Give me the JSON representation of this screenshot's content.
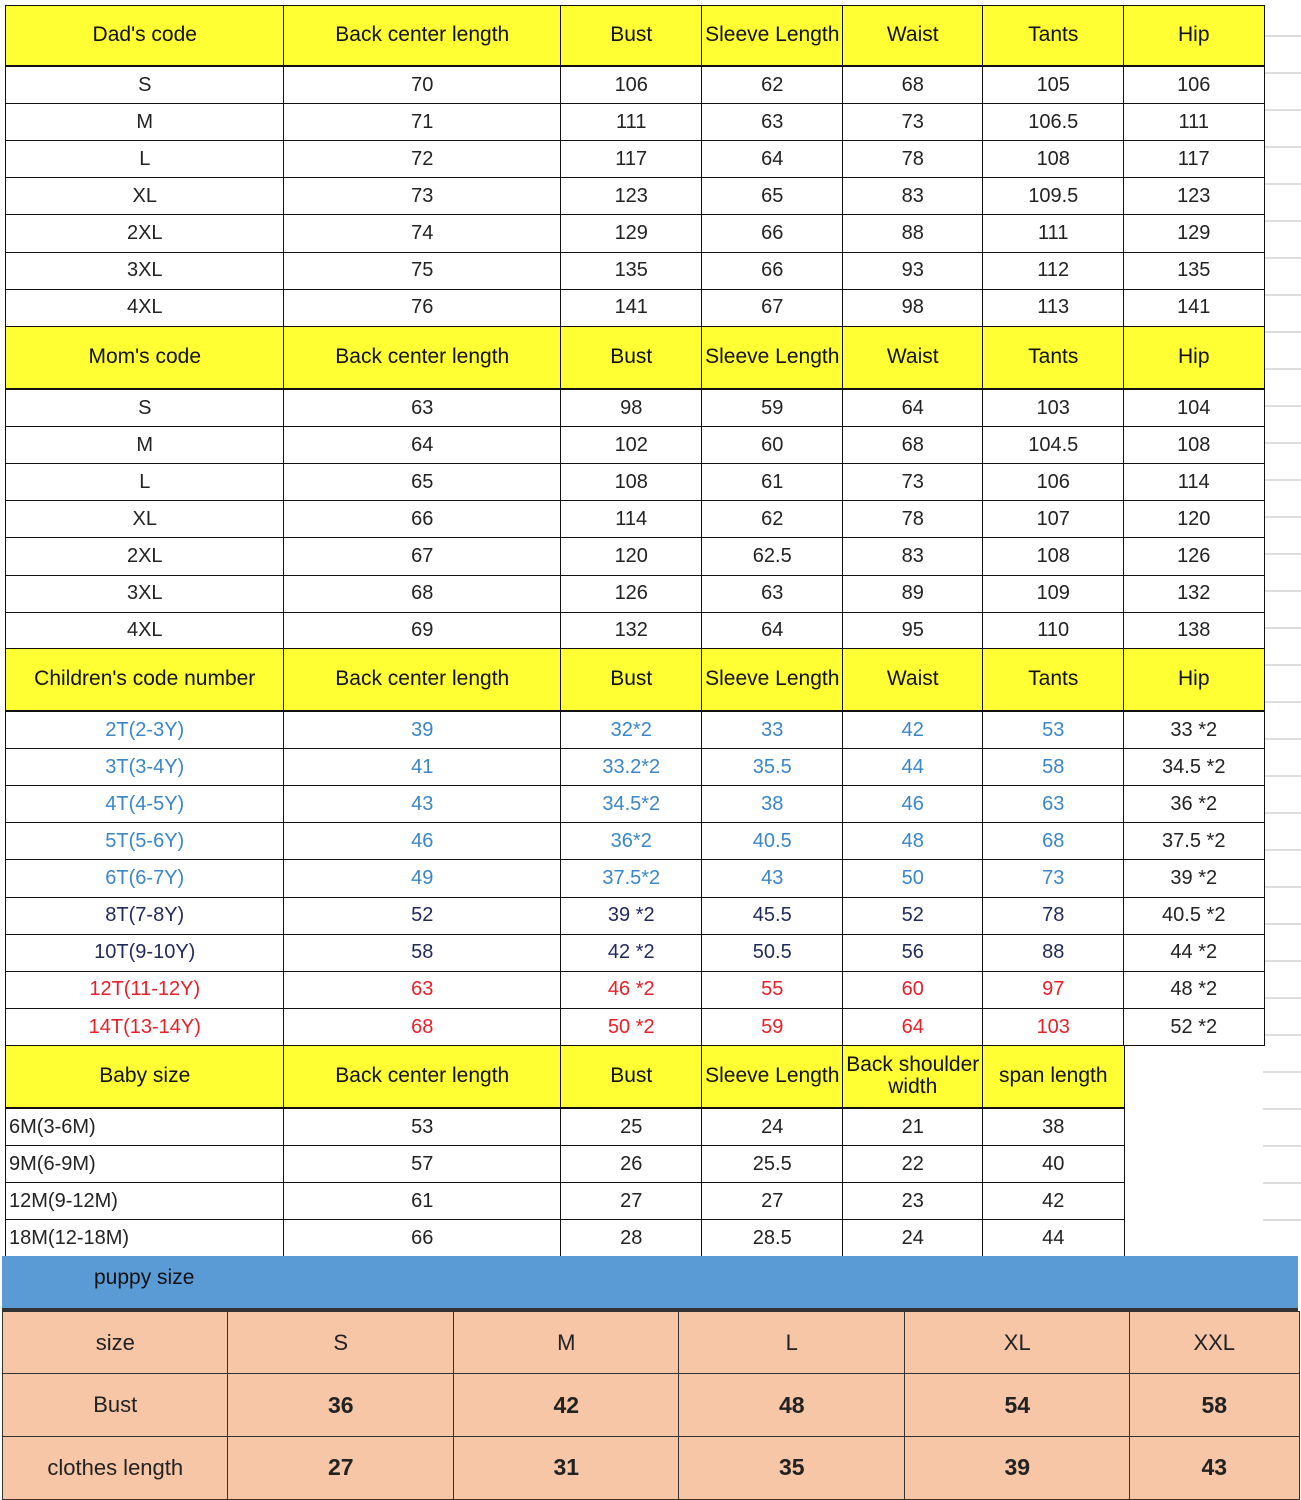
{
  "colors": {
    "header_bg": "#ffff33",
    "puppy_bar": "#5b9bd5",
    "puppy_cells": "#f7c6a6",
    "blue_text": "#3a86c8",
    "navy_text": "#1f2a5a",
    "red_text": "#e8202a",
    "default_text": "#222222"
  },
  "dad": {
    "headers": [
      "Dad's code",
      "Back center length",
      "Bust",
      "Sleeve Length",
      "Waist",
      "Tants",
      "Hip"
    ],
    "rows": [
      [
        "S",
        "70",
        "106",
        "62",
        "68",
        "105",
        "106"
      ],
      [
        "M",
        "71",
        "111",
        "63",
        "73",
        "106.5",
        "111"
      ],
      [
        "L",
        "72",
        "117",
        "64",
        "78",
        "108",
        "117"
      ],
      [
        "XL",
        "73",
        "123",
        "65",
        "83",
        "109.5",
        "123"
      ],
      [
        "2XL",
        "74",
        "129",
        "66",
        "88",
        "111",
        "129"
      ],
      [
        "3XL",
        "75",
        "135",
        "66",
        "93",
        "112",
        "135"
      ],
      [
        "4XL",
        "76",
        "141",
        "67",
        "98",
        "113",
        "141"
      ]
    ]
  },
  "mom": {
    "headers": [
      "Mom's code",
      "Back center length",
      "Bust",
      "Sleeve Length",
      "Waist",
      "Tants",
      "Hip"
    ],
    "rows": [
      [
        "S",
        "63",
        "98",
        "59",
        "64",
        "103",
        "104"
      ],
      [
        "M",
        "64",
        "102",
        "60",
        "68",
        "104.5",
        "108"
      ],
      [
        "L",
        "65",
        "108",
        "61",
        "73",
        "106",
        "114"
      ],
      [
        "XL",
        "66",
        "114",
        "62",
        "78",
        "107",
        "120"
      ],
      [
        "2XL",
        "67",
        "120",
        "62.5",
        "83",
        "108",
        "126"
      ],
      [
        "3XL",
        "68",
        "126",
        "63",
        "89",
        "109",
        "132"
      ],
      [
        "4XL",
        "69",
        "132",
        "64",
        "95",
        "110",
        "138"
      ]
    ]
  },
  "children": {
    "headers": [
      "Children's code number",
      "Back center length",
      "Bust",
      "Sleeve Length",
      "Waist",
      "Tants",
      "Hip"
    ],
    "rows": [
      [
        "2T(2-3Y)",
        "39",
        "32*2",
        "33",
        "42",
        "53",
        "33 *2"
      ],
      [
        "3T(3-4Y)",
        "41",
        "33.2*2",
        "35.5",
        "44",
        "58",
        "34.5 *2"
      ],
      [
        "4T(4-5Y)",
        "43",
        "34.5*2",
        "38",
        "46",
        "63",
        "36 *2"
      ],
      [
        "5T(5-6Y)",
        "46",
        "36*2",
        "40.5",
        "48",
        "68",
        "37.5 *2"
      ],
      [
        "6T(6-7Y)",
        "49",
        "37.5*2",
        "43",
        "50",
        "73",
        "39 *2"
      ],
      [
        "8T(7-8Y)",
        "52",
        "39 *2",
        "45.5",
        "52",
        "78",
        "40.5 *2"
      ],
      [
        "10T(9-10Y)",
        "58",
        "42 *2",
        "50.5",
        "56",
        "88",
        "44 *2"
      ],
      [
        "12T(11-12Y)",
        "63",
        "46 *2",
        "55",
        "60",
        "97",
        "48 *2"
      ],
      [
        "14T(13-14Y)",
        "68",
        "50 *2",
        "59",
        "64",
        "103",
        "52 *2"
      ]
    ],
    "row_colors": [
      "blue",
      "blue",
      "blue",
      "blue",
      "blue",
      "navy",
      "navy",
      "red",
      "red"
    ]
  },
  "baby": {
    "headers": [
      "Baby size",
      "Back center length",
      "Bust",
      "Sleeve Length",
      "Back shoulder width",
      "span length"
    ],
    "rows": [
      [
        "6M(3-6M)",
        "53",
        "25",
        "24",
        "21",
        "38"
      ],
      [
        "9M(6-9M)",
        "57",
        "26",
        "25.5",
        "22",
        "40"
      ],
      [
        "12M(9-12M)",
        "61",
        "27",
        "27",
        "23",
        "42"
      ],
      [
        "18M(12-18M)",
        "66",
        "28",
        "28.5",
        "24",
        "44"
      ]
    ]
  },
  "puppy": {
    "title": "puppy size",
    "rows": [
      [
        "size",
        "S",
        "M",
        "L",
        "XL",
        "XXL"
      ],
      [
        "Bust",
        "36",
        "42",
        "48",
        "54",
        "58"
      ],
      [
        "clothes length",
        "27",
        "31",
        "35",
        "39",
        "43"
      ]
    ]
  }
}
